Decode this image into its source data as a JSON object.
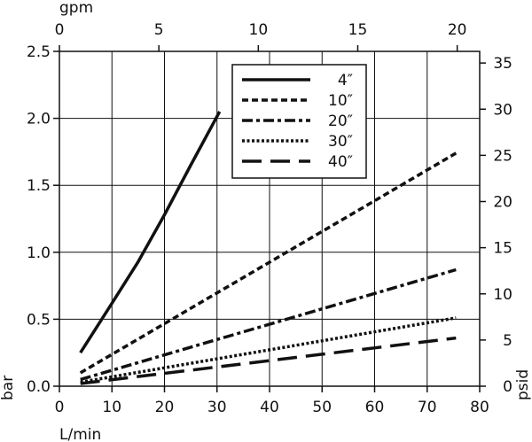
{
  "chart_data": {
    "type": "line",
    "title": "",
    "x": {
      "label": "L/min",
      "range": [
        0,
        80
      ],
      "ticks": [
        0,
        10,
        20,
        30,
        40,
        50,
        60,
        70,
        80
      ]
    },
    "x2": {
      "label": "gpm",
      "range": [
        0,
        21.13
      ],
      "ticks": [
        0,
        5,
        10,
        15,
        20
      ]
    },
    "y": {
      "label": "bar",
      "range": [
        0,
        2.5
      ],
      "ticks": [
        "0.0",
        "0.5",
        "1.0",
        "1.5",
        "2.0",
        "2.5"
      ]
    },
    "y2": {
      "label": "psid",
      "range": [
        0,
        36.26
      ],
      "ticks": [
        0,
        5,
        10,
        15,
        20,
        25,
        30,
        35
      ]
    },
    "grid": true,
    "legend_position": "top-right",
    "series": [
      {
        "name": "4″",
        "style": "solid",
        "x": [
          4,
          10,
          15,
          20,
          25,
          30.5
        ],
        "y": [
          0.25,
          0.62,
          0.93,
          1.28,
          1.65,
          2.05
        ]
      },
      {
        "name": "10″",
        "style": "dashed",
        "x": [
          4,
          75.5
        ],
        "y": [
          0.1,
          1.74
        ]
      },
      {
        "name": "20″",
        "style": "dashdot",
        "x": [
          4,
          75.5
        ],
        "y": [
          0.05,
          0.87
        ]
      },
      {
        "name": "30″",
        "style": "dotted",
        "x": [
          4,
          75.5
        ],
        "y": [
          0.03,
          0.51
        ]
      },
      {
        "name": "40″",
        "style": "longdash",
        "x": [
          4,
          75.5
        ],
        "y": [
          0.02,
          0.36
        ]
      }
    ]
  }
}
